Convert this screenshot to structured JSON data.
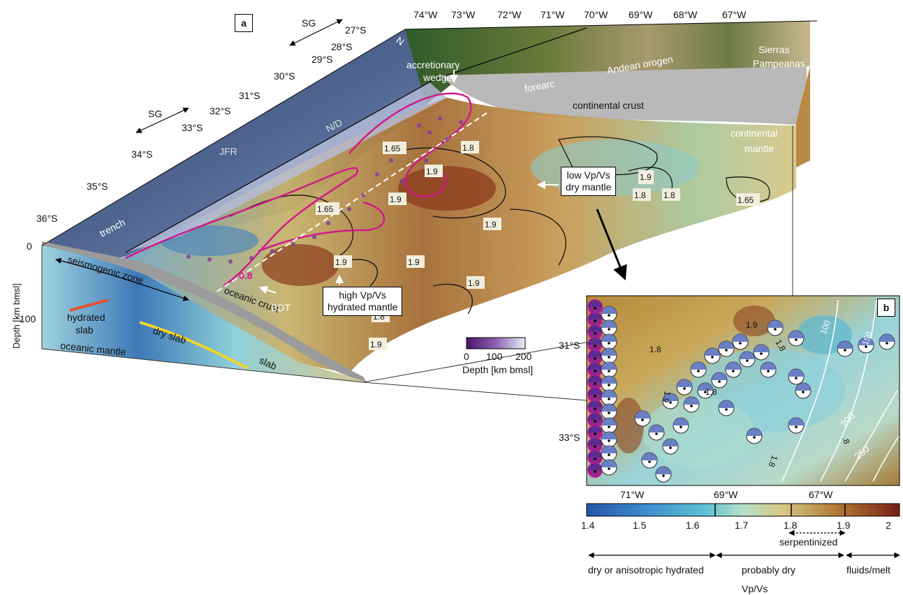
{
  "panel_a": {
    "label": "a",
    "lon_labels": [
      "74°W",
      "73°W",
      "72°W",
      "71°W",
      "70°W",
      "69°W",
      "68°W",
      "67°W"
    ],
    "lat_labels": [
      "27°S",
      "28°S",
      "29°S",
      "30°S",
      "31°S",
      "32°S",
      "33°S",
      "34°S",
      "35°S",
      "36°S"
    ],
    "sg_label": "SG",
    "north_label": "N",
    "features": {
      "accretionary_wedge": "accretionary\nwedge",
      "forearc": "forearc",
      "andean_orogen": "Andean orogen",
      "sierras_pampeanas": "Sierras\nPampeanas",
      "continental_crust": "continental crust",
      "continental_mantle": "continental\nmantle",
      "nd": "N/D",
      "jfr": "JFR",
      "trench": "trench",
      "seismogenic_zone": "seismogenic zone",
      "oceanic_crust": "oceanic crust",
      "hydrated_slab": "hydrated\nslab",
      "dry_slab": "dry slab",
      "oceanic_mantle": "oceanic mantle",
      "slab": "slab",
      "bdt": "BDT",
      "bdt_value": "0.8"
    },
    "depth_axis": {
      "label": "Depth [km bmsl]",
      "ticks": [
        "0",
        "100"
      ]
    },
    "callouts": {
      "low": "low Vp/Vs\ndry mantle",
      "high": "high Vp/Vs\nhydrated mantle"
    },
    "contour_labels": [
      "1.65",
      "1.8",
      "1.9",
      "1.9",
      "1.65",
      "1.9",
      "1.9",
      "1.8",
      "1.9",
      "1.8",
      "1.9",
      "1.9",
      "1.8",
      "1.65",
      "1.9"
    ],
    "depth_colorbar": {
      "ticks": [
        "0",
        "100",
        "200"
      ],
      "label": "Depth [km bmsl]"
    }
  },
  "panel_b": {
    "label": "b",
    "lat_labels": [
      "31°S",
      "33°S"
    ],
    "lon_labels": [
      "71°W",
      "69°W",
      "67°W"
    ],
    "contour_labels": [
      "1.9",
      "1.8",
      "1.8",
      "1.8",
      "1.9",
      "1.8",
      ".8",
      "100",
      "150",
      "200",
      "250"
    ]
  },
  "colorbar": {
    "ticks": [
      "1.4",
      "1.5",
      "1.6",
      "1.7",
      "1.8",
      "1.9",
      "2"
    ],
    "label": "Vp/Vs",
    "serpentinized": "serpentinized",
    "ranges": [
      "dry or anisotropic hydrated",
      "probably dry",
      "fluids/melt"
    ]
  }
}
